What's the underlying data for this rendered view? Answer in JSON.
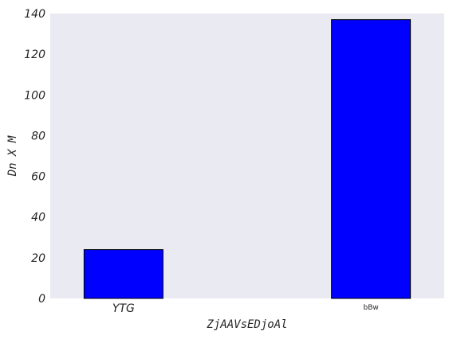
{
  "chart_data": {
    "type": "bar",
    "categories": [
      "YTG",
      "bBw"
    ],
    "values": [
      24,
      137
    ],
    "xlabel": "ZjAAVsEDjoAl",
    "ylabel": "Dn X M",
    "ylim": [
      0,
      140
    ],
    "yticks": [
      0,
      20,
      40,
      60,
      80,
      100,
      120,
      140
    ],
    "grid": false,
    "bar_color": "#0000ff",
    "bar_edge_color": "#000000",
    "background_color": "#eaeaf2"
  }
}
